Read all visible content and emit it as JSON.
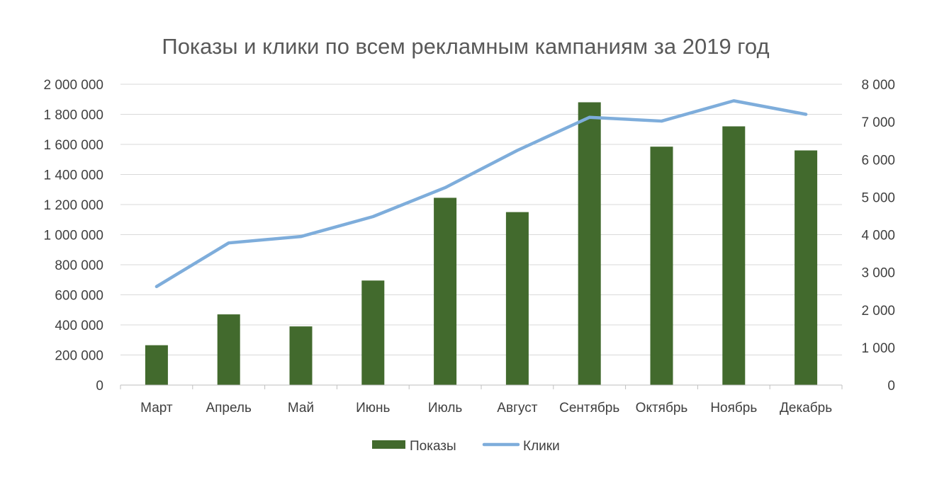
{
  "chart_data": {
    "type": "bar",
    "title": "Показы и клики по всем рекламным кампаниям за 2019 год",
    "categories": [
      "Март",
      "Апрель",
      "Май",
      "Июнь",
      "Июль",
      "Август",
      "Сентябрь",
      "Октябрь",
      "Ноябрь",
      "Декабрь"
    ],
    "series": [
      {
        "name": "Показы",
        "type": "bar",
        "axis": "left",
        "color": "#426a2d",
        "values": [
          265000,
          470000,
          390000,
          695000,
          1245000,
          1150000,
          1880000,
          1585000,
          1720000,
          1560000
        ]
      },
      {
        "name": "Клики",
        "type": "line",
        "axis": "right",
        "color": "#7eaddb",
        "values": [
          2620,
          3780,
          3950,
          4480,
          5250,
          6240,
          7120,
          7020,
          7560,
          7200
        ]
      }
    ],
    "y_left": {
      "min": 0,
      "max": 2000000,
      "ticks": [
        0,
        200000,
        400000,
        600000,
        800000,
        1000000,
        1200000,
        1400000,
        1600000,
        1800000,
        2000000
      ],
      "tick_labels": [
        "0",
        "200 000",
        "400 000",
        "600 000",
        "800 000",
        "1 000 000",
        "1 200 000",
        "1 400 000",
        "1 600 000",
        "1 800 000",
        "2 000 000"
      ]
    },
    "y_right": {
      "min": 0,
      "max": 8000,
      "ticks": [
        0,
        1000,
        2000,
        3000,
        4000,
        5000,
        6000,
        7000,
        8000
      ],
      "tick_labels": [
        "0",
        "1 000",
        "2 000",
        "3 000",
        "4 000",
        "5 000",
        "6 000",
        "7 000",
        "8 000"
      ]
    },
    "grid": true,
    "legend_position": "bottom"
  }
}
